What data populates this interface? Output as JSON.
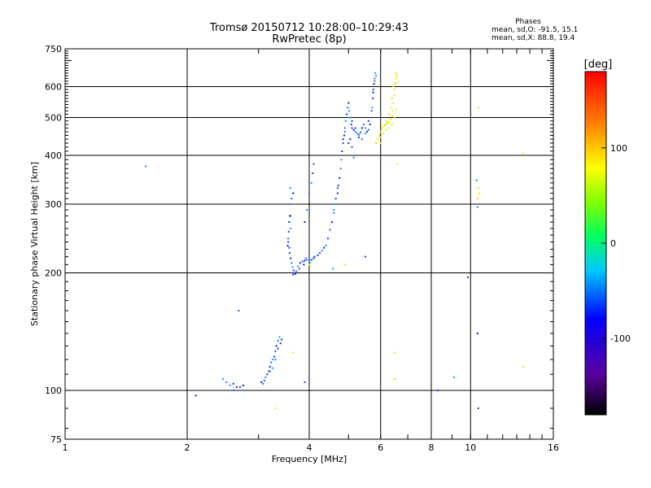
{
  "title": "Tromsø 20150712 10:28:00–10:29:43",
  "subtitle": "RwPretec (8p)",
  "phases": {
    "title": "Phases",
    "line1": "mean, sd,O: -91.5, 15.1",
    "line2": "mean, sd,X:  88.8, 19.4"
  },
  "chart_data": {
    "type": "scatter",
    "xlabel": "Frequency [MHz]",
    "ylabel": "Stationary phase Virtual Height [km]",
    "xscale": "log",
    "yscale": "log",
    "xlim": [
      1,
      16
    ],
    "ylim": [
      75,
      750
    ],
    "xticks": [
      1,
      2,
      4,
      6,
      8,
      10,
      16
    ],
    "yticks": [
      75,
      100,
      200,
      300,
      400,
      500,
      600,
      750
    ],
    "grid": true,
    "colorbar": {
      "label": "[deg]",
      "range": [
        -180,
        180
      ],
      "ticks": [
        100,
        0,
        -100
      ],
      "colormap": "rainbow"
    },
    "series": [
      {
        "name": "O",
        "points": [
          [
            3.55,
            240
          ],
          [
            3.56,
            255
          ],
          [
            3.57,
            270
          ],
          [
            3.58,
            300
          ],
          [
            3.59,
            330
          ],
          [
            3.57,
            232
          ],
          [
            3.58,
            225
          ],
          [
            3.6,
            218
          ],
          [
            3.62,
            212
          ],
          [
            3.64,
            207
          ],
          [
            3.66,
            203
          ],
          [
            3.68,
            200
          ],
          [
            3.7,
            199
          ],
          [
            3.72,
            202
          ],
          [
            3.75,
            208
          ],
          [
            3.8,
            212
          ],
          [
            3.85,
            214
          ],
          [
            3.9,
            215
          ],
          [
            3.95,
            216
          ],
          [
            4.0,
            215
          ],
          [
            4.05,
            216
          ],
          [
            4.1,
            218
          ],
          [
            4.2,
            222
          ],
          [
            4.3,
            228
          ],
          [
            4.4,
            235
          ],
          [
            4.45,
            245
          ],
          [
            4.5,
            258
          ],
          [
            4.55,
            270
          ],
          [
            4.6,
            285
          ],
          [
            4.65,
            300
          ],
          [
            4.7,
            320
          ],
          [
            4.72,
            335
          ],
          [
            4.75,
            350
          ],
          [
            4.78,
            370
          ],
          [
            4.8,
            390
          ],
          [
            4.82,
            410
          ],
          [
            4.85,
            430
          ],
          [
            4.88,
            450
          ],
          [
            4.9,
            470
          ],
          [
            4.92,
            490
          ],
          [
            4.95,
            510
          ],
          [
            4.98,
            530
          ],
          [
            5.0,
            545
          ],
          [
            5.02,
            520
          ],
          [
            5.05,
            500
          ],
          [
            5.08,
            480
          ],
          [
            5.1,
            470
          ],
          [
            5.15,
            465
          ],
          [
            5.2,
            460
          ],
          [
            5.25,
            455
          ],
          [
            5.3,
            452
          ],
          [
            5.35,
            458
          ],
          [
            5.4,
            470
          ],
          [
            5.45,
            480
          ],
          [
            5.5,
            470
          ],
          [
            5.55,
            460
          ],
          [
            5.6,
            465
          ],
          [
            5.65,
            480
          ],
          [
            5.7,
            500
          ],
          [
            5.72,
            530
          ],
          [
            5.74,
            560
          ],
          [
            5.76,
            590
          ],
          [
            5.78,
            610
          ],
          [
            5.8,
            630
          ],
          [
            5.82,
            650
          ],
          [
            3.65,
            198
          ],
          [
            3.78,
            205
          ],
          [
            3.88,
            210
          ],
          [
            3.92,
            218
          ],
          [
            4.02,
            212
          ],
          [
            4.12,
            220
          ],
          [
            4.25,
            225
          ],
          [
            4.35,
            232
          ],
          [
            3.55,
            245
          ],
          [
            3.6,
            260
          ],
          [
            3.58,
            280
          ],
          [
            3.62,
            310
          ],
          [
            3.54,
            235
          ],
          [
            4.0,
            320
          ],
          [
            4.05,
            340
          ],
          [
            4.08,
            360
          ],
          [
            4.1,
            380
          ],
          [
            3.9,
            270
          ],
          [
            3.95,
            290
          ],
          [
            4.6,
            290
          ],
          [
            4.65,
            310
          ],
          [
            4.7,
            330
          ],
          [
            4.85,
            440
          ],
          [
            4.9,
            460
          ],
          [
            5.0,
            500
          ],
          [
            5.1,
            490
          ],
          [
            5.2,
            470
          ],
          [
            5.3,
            445
          ],
          [
            5.4,
            440
          ],
          [
            5.5,
            455
          ],
          [
            5.6,
            490
          ],
          [
            5.7,
            520
          ],
          [
            5.75,
            580
          ],
          [
            5.8,
            620
          ],
          [
            5.85,
            640
          ],
          [
            5.0,
            430
          ],
          [
            5.1,
            420
          ],
          [
            5.05,
            440
          ],
          [
            3.08,
            104
          ],
          [
            3.12,
            108
          ],
          [
            3.15,
            110
          ],
          [
            3.18,
            112
          ],
          [
            3.2,
            115
          ],
          [
            3.22,
            118
          ],
          [
            3.25,
            120
          ],
          [
            3.28,
            122
          ],
          [
            3.3,
            126
          ],
          [
            3.32,
            130
          ],
          [
            3.35,
            134
          ],
          [
            3.38,
            137
          ],
          [
            3.4,
            132
          ],
          [
            3.1,
            106
          ],
          [
            3.05,
            105
          ],
          [
            3.3,
            120
          ],
          [
            3.25,
            114
          ],
          [
            3.35,
            128
          ],
          [
            3.2,
            112
          ],
          [
            3.42,
            135
          ],
          [
            2.5,
            105
          ],
          [
            2.55,
            103
          ],
          [
            2.6,
            104
          ],
          [
            2.7,
            102
          ],
          [
            2.75,
            103
          ],
          [
            2.6,
            100
          ],
          [
            2.45,
            107
          ],
          [
            2.65,
            102
          ],
          [
            2.68,
            160
          ],
          [
            2.1,
            97
          ],
          [
            1.58,
            375
          ],
          [
            4.58,
            205
          ],
          [
            5.5,
            220
          ],
          [
            3.6,
            280
          ],
          [
            3.65,
            320
          ],
          [
            5.15,
            395
          ],
          [
            9.1,
            108
          ],
          [
            9.85,
            195
          ],
          [
            10.45,
            90
          ],
          [
            10.4,
            140
          ],
          [
            10.4,
            295
          ],
          [
            10.35,
            345
          ],
          [
            8.3,
            100
          ],
          [
            3.9,
            105
          ]
        ]
      },
      {
        "name": "X",
        "points": [
          [
            6.0,
            460
          ],
          [
            6.05,
            470
          ],
          [
            6.1,
            475
          ],
          [
            6.15,
            478
          ],
          [
            6.2,
            482
          ],
          [
            6.25,
            485
          ],
          [
            6.3,
            488
          ],
          [
            6.35,
            495
          ],
          [
            6.4,
            505
          ],
          [
            6.42,
            520
          ],
          [
            6.45,
            545
          ],
          [
            6.48,
            570
          ],
          [
            6.5,
            590
          ],
          [
            6.52,
            610
          ],
          [
            6.55,
            630
          ],
          [
            6.58,
            640
          ],
          [
            5.9,
            440
          ],
          [
            5.95,
            450
          ],
          [
            6.0,
            445
          ],
          [
            6.1,
            455
          ],
          [
            6.2,
            465
          ],
          [
            6.3,
            470
          ],
          [
            6.4,
            480
          ],
          [
            6.5,
            500
          ],
          [
            6.55,
            525
          ],
          [
            5.85,
            430
          ],
          [
            6.0,
            430
          ],
          [
            6.2,
            490
          ],
          [
            6.3,
            510
          ],
          [
            6.35,
            530
          ],
          [
            6.4,
            560
          ],
          [
            6.45,
            600
          ],
          [
            6.6,
            615
          ],
          [
            6.55,
            650
          ],
          [
            4.0,
            210
          ],
          [
            4.9,
            210
          ],
          [
            3.65,
            125
          ],
          [
            6.5,
            125
          ],
          [
            6.5,
            107
          ],
          [
            3.3,
            90
          ],
          [
            10.45,
            530
          ],
          [
            10.5,
            320
          ],
          [
            10.45,
            330
          ],
          [
            10.4,
            310
          ],
          [
            13.5,
            405
          ],
          [
            13.5,
            115
          ],
          [
            6.6,
            380
          ]
        ]
      }
    ]
  }
}
